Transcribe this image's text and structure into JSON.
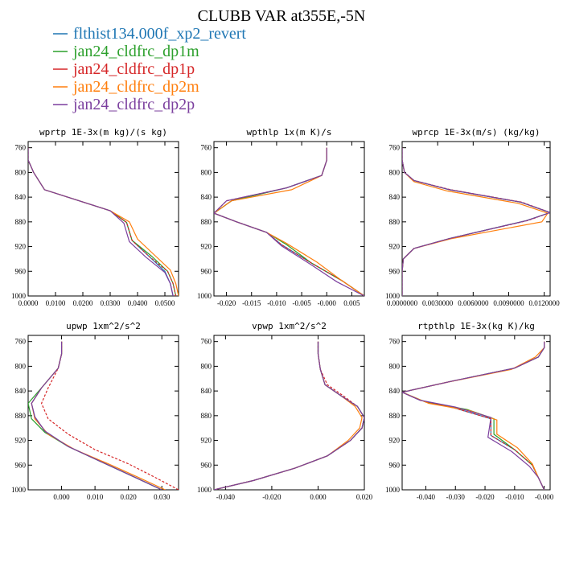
{
  "figure": {
    "title": "CLUBB VAR at355E,-5N"
  },
  "legend": [
    {
      "label": "flthist134.000f_xp2_revert",
      "color": "#1f77b4"
    },
    {
      "label": "jan24_cldfrc_dp1m",
      "color": "#2ca02c"
    },
    {
      "label": "jan24_cldfrc_dp1p",
      "color": "#d62728"
    },
    {
      "label": "jan24_cldfrc_dp2m",
      "color": "#ff7f0e"
    },
    {
      "label": "jan24_cldfrc_dp2p",
      "color": "#7b3f9e"
    }
  ],
  "chart_data": [
    {
      "type": "line",
      "title": "wprtp  1E-3x(m kg)/(s kg)",
      "xlim": [
        0.0,
        0.055
      ],
      "ylim": [
        1000,
        750
      ],
      "y_reversed": true,
      "xticks": [
        0.0,
        0.01,
        0.02,
        0.03,
        0.04,
        0.05
      ],
      "xtick_labels": [
        "0.0000",
        "0.0100",
        "0.0200",
        "0.0300",
        "0.0400",
        "0.0500"
      ],
      "yticks": [
        760,
        800,
        840,
        880,
        920,
        960,
        1000
      ],
      "series": [
        {
          "x": [
            0.0,
            0.0,
            0.002,
            0.006,
            0.03,
            0.036,
            0.038,
            0.044,
            0.05,
            0.052,
            0.053
          ],
          "y": [
            760,
            780,
            800,
            828,
            862,
            881,
            910,
            935,
            960,
            980,
            1000
          ]
        },
        {
          "x": [
            0.0,
            0.0,
            0.002,
            0.006,
            0.03,
            0.036,
            0.038,
            0.045,
            0.051,
            0.053,
            0.054
          ],
          "y": [
            760,
            780,
            800,
            828,
            862,
            881,
            910,
            935,
            960,
            980,
            1000
          ]
        },
        {
          "x": [
            0.0,
            0.0,
            0.002,
            0.006,
            0.03,
            0.036,
            0.038,
            0.044,
            0.051,
            0.053,
            0.054
          ],
          "y": [
            760,
            780,
            800,
            828,
            862,
            881,
            910,
            935,
            960,
            980,
            1000
          ]
        },
        {
          "x": [
            0.0,
            0.0,
            0.002,
            0.006,
            0.03,
            0.037,
            0.04,
            0.046,
            0.052,
            0.054,
            0.055
          ],
          "y": [
            760,
            780,
            800,
            828,
            862,
            880,
            908,
            933,
            958,
            980,
            1000
          ]
        },
        {
          "x": [
            0.0,
            0.0,
            0.002,
            0.006,
            0.03,
            0.035,
            0.037,
            0.043,
            0.05,
            0.052,
            0.053
          ],
          "y": [
            760,
            780,
            800,
            828,
            862,
            882,
            912,
            937,
            962,
            980,
            1000
          ]
        }
      ]
    },
    {
      "type": "line",
      "title": "wpthlp  1x(m K)/s",
      "xlim": [
        -0.0225,
        0.0075
      ],
      "ylim": [
        1000,
        750
      ],
      "y_reversed": true,
      "xticks": [
        -0.02,
        -0.015,
        -0.01,
        -0.005,
        0.0,
        0.005
      ],
      "xtick_labels": [
        "-0.020",
        "-0.015",
        "-0.010",
        "-0.005",
        "-0.000",
        "0.005"
      ],
      "yticks": [
        760,
        800,
        840,
        880,
        920,
        960,
        1000
      ],
      "series": [
        {
          "x": [
            0.0,
            0.0,
            -0.001,
            -0.008,
            -0.019,
            -0.0225,
            -0.018,
            -0.012,
            -0.009,
            -0.003,
            0.003,
            0.0075
          ],
          "y": [
            760,
            780,
            805,
            825,
            846,
            866,
            880,
            897,
            917,
            947,
            975,
            1000
          ]
        },
        {
          "x": [
            0.0,
            0.0,
            -0.001,
            -0.008,
            -0.019,
            -0.0225,
            -0.018,
            -0.012,
            -0.008,
            -0.003,
            0.003,
            0.0075
          ],
          "y": [
            760,
            780,
            805,
            825,
            846,
            866,
            880,
            897,
            917,
            947,
            975,
            1000
          ]
        },
        {
          "x": [
            0.0,
            0.0,
            -0.001,
            -0.008,
            -0.02,
            -0.0225,
            -0.018,
            -0.012,
            -0.009,
            -0.003,
            0.003,
            0.0075
          ],
          "y": [
            760,
            780,
            805,
            825,
            846,
            866,
            880,
            897,
            917,
            947,
            975,
            1000
          ]
        },
        {
          "x": [
            0.0,
            0.0,
            -0.001,
            -0.007,
            -0.019,
            -0.0225,
            -0.018,
            -0.012,
            -0.008,
            -0.002,
            0.003,
            0.0075
          ],
          "y": [
            760,
            780,
            805,
            828,
            846,
            866,
            880,
            897,
            915,
            945,
            975,
            1000
          ]
        },
        {
          "x": [
            0.0,
            0.0,
            -0.001,
            -0.008,
            -0.02,
            -0.0225,
            -0.018,
            -0.012,
            -0.009,
            -0.003,
            0.002,
            0.0075
          ],
          "y": [
            760,
            780,
            805,
            825,
            846,
            866,
            880,
            897,
            919,
            950,
            977,
            1000
          ]
        }
      ]
    },
    {
      "type": "line",
      "title": "wprcp  1E-3x(m/s) (kg/kg)",
      "xlim": [
        0.0,
        0.0125
      ],
      "ylim": [
        1000,
        750
      ],
      "y_reversed": true,
      "xticks": [
        0.0,
        0.003,
        0.006,
        0.009,
        0.012
      ],
      "xtick_labels": [
        "0.0000000",
        "0.0030000",
        "0.0060000",
        "0.0090000",
        "0.0120000"
      ],
      "yticks": [
        760,
        800,
        840,
        880,
        920,
        960,
        1000
      ],
      "series": [
        {
          "x": [
            0.0,
            0.0,
            0.0002,
            0.001,
            0.004,
            0.01,
            0.0125,
            0.0105,
            0.004,
            0.001,
            0.0001,
            0.0,
            0.0
          ],
          "y": [
            760,
            780,
            800,
            813,
            828,
            848,
            865,
            878,
            907,
            923,
            940,
            960,
            1000
          ]
        },
        {
          "x": [
            0.0,
            0.0,
            0.0002,
            0.001,
            0.004,
            0.01,
            0.0125,
            0.0105,
            0.004,
            0.001,
            0.0001,
            0.0,
            0.0
          ],
          "y": [
            760,
            780,
            800,
            813,
            828,
            848,
            865,
            878,
            907,
            923,
            940,
            960,
            1000
          ]
        },
        {
          "x": [
            0.0,
            0.0,
            0.0002,
            0.001,
            0.0041,
            0.0101,
            0.0125,
            0.0106,
            0.004,
            0.001,
            0.0001,
            0.0,
            0.0
          ],
          "y": [
            760,
            780,
            800,
            813,
            828,
            848,
            865,
            878,
            907,
            923,
            940,
            960,
            1000
          ]
        },
        {
          "x": [
            0.0,
            0.0,
            0.0002,
            0.001,
            0.0038,
            0.0098,
            0.0123,
            0.0118,
            0.0042,
            0.001,
            0.0001,
            0.0,
            0.0
          ],
          "y": [
            760,
            780,
            800,
            815,
            830,
            850,
            866,
            880,
            907,
            923,
            940,
            960,
            1000
          ]
        },
        {
          "x": [
            0.0,
            0.0,
            0.0002,
            0.001,
            0.004,
            0.01,
            0.0125,
            0.0105,
            0.004,
            0.001,
            0.0001,
            0.0,
            0.0
          ],
          "y": [
            760,
            780,
            800,
            813,
            828,
            848,
            865,
            878,
            907,
            923,
            940,
            960,
            1000
          ]
        }
      ]
    },
    {
      "type": "line",
      "title": "upwp  1xm^2/s^2",
      "xlim": [
        -0.01,
        0.035
      ],
      "ylim": [
        1000,
        750
      ],
      "y_reversed": true,
      "xticks": [
        0.0,
        0.01,
        0.02,
        0.03
      ],
      "xtick_labels": [
        "0.000",
        "0.010",
        "0.020",
        "0.030"
      ],
      "yticks": [
        760,
        800,
        840,
        880,
        920,
        960,
        1000
      ],
      "series": [
        {
          "x": [
            0.0,
            0.0,
            -0.001,
            -0.006,
            -0.009,
            -0.008,
            -0.005,
            0.002,
            0.012,
            0.022,
            0.03
          ],
          "y": [
            760,
            780,
            803,
            835,
            860,
            882,
            905,
            930,
            955,
            980,
            1000
          ]
        },
        {
          "x": [
            0.0,
            0.0,
            -0.001,
            -0.006,
            -0.01,
            -0.009,
            -0.005,
            0.002,
            0.012,
            0.022,
            0.03
          ],
          "y": [
            760,
            780,
            803,
            835,
            860,
            885,
            907,
            930,
            955,
            980,
            1000
          ]
        },
        {
          "x": [
            0.0,
            0.0,
            -0.001,
            -0.004,
            -0.006,
            -0.004,
            0.002,
            0.01,
            0.02,
            0.028,
            0.035
          ],
          "y": [
            760,
            780,
            803,
            835,
            860,
            885,
            910,
            935,
            958,
            980,
            1000
          ]
        },
        {
          "x": [
            0.0,
            0.0,
            -0.001,
            -0.006,
            -0.009,
            -0.008,
            -0.004,
            0.004,
            0.014,
            0.023,
            0.031
          ],
          "y": [
            760,
            780,
            803,
            835,
            860,
            885,
            910,
            935,
            958,
            980,
            1000
          ]
        },
        {
          "x": [
            0.0,
            0.0,
            -0.001,
            -0.006,
            -0.009,
            -0.008,
            -0.005,
            0.002,
            0.012,
            0.022,
            0.03
          ],
          "y": [
            760,
            780,
            803,
            835,
            860,
            882,
            905,
            930,
            955,
            980,
            1000
          ]
        }
      ]
    },
    {
      "type": "line",
      "title": "vpwp  1xm^2/s^2",
      "xlim": [
        -0.045,
        0.02
      ],
      "ylim": [
        1000,
        750
      ],
      "y_reversed": true,
      "xticks": [
        -0.04,
        -0.02,
        0.0,
        0.02
      ],
      "xtick_labels": [
        "-0.040",
        "-0.020",
        "0.000",
        "0.020"
      ],
      "yticks": [
        760,
        800,
        840,
        880,
        920,
        960,
        1000
      ],
      "series": [
        {
          "x": [
            0.0,
            0.0,
            0.001,
            0.003,
            0.01,
            0.017,
            0.02,
            0.019,
            0.014,
            0.004,
            -0.01,
            -0.028,
            -0.045
          ],
          "y": [
            760,
            780,
            805,
            830,
            848,
            865,
            883,
            900,
            920,
            945,
            965,
            985,
            1000
          ]
        },
        {
          "x": [
            0.0,
            0.0,
            0.001,
            0.003,
            0.01,
            0.017,
            0.02,
            0.019,
            0.014,
            0.004,
            -0.01,
            -0.028,
            -0.045
          ],
          "y": [
            760,
            780,
            805,
            830,
            848,
            865,
            883,
            900,
            920,
            945,
            965,
            985,
            1000
          ]
        },
        {
          "x": [
            0.0,
            0.0,
            0.001,
            0.004,
            0.011,
            0.017,
            0.02,
            0.019,
            0.014,
            0.004,
            -0.01,
            -0.028,
            -0.045
          ],
          "y": [
            760,
            780,
            805,
            830,
            848,
            865,
            883,
            900,
            920,
            945,
            965,
            985,
            1000
          ]
        },
        {
          "x": [
            0.0,
            0.0,
            0.001,
            0.003,
            0.01,
            0.016,
            0.019,
            0.018,
            0.013,
            0.004,
            -0.01,
            -0.028,
            -0.045
          ],
          "y": [
            760,
            780,
            805,
            830,
            848,
            865,
            883,
            900,
            920,
            945,
            965,
            985,
            1000
          ]
        },
        {
          "x": [
            0.0,
            0.0,
            0.001,
            0.003,
            0.01,
            0.017,
            0.02,
            0.019,
            0.014,
            0.004,
            -0.01,
            -0.028,
            -0.045
          ],
          "y": [
            760,
            780,
            805,
            830,
            848,
            865,
            883,
            900,
            920,
            945,
            965,
            985,
            1000
          ]
        }
      ]
    },
    {
      "type": "line",
      "title": "rtpthlp  1E-3x(kg K)/kg",
      "xlim": [
        -0.048,
        0.002
      ],
      "ylim": [
        1000,
        750
      ],
      "y_reversed": true,
      "xticks": [
        -0.04,
        -0.03,
        -0.02,
        -0.01,
        0.0
      ],
      "xtick_labels": [
        "-0.040",
        "-0.030",
        "-0.020",
        "-0.010",
        "-0.000"
      ],
      "yticks": [
        760,
        800,
        840,
        880,
        920,
        960,
        1000
      ],
      "series": [
        {
          "x": [
            0.0,
            0.0,
            -0.002,
            -0.01,
            -0.032,
            -0.048,
            -0.042,
            -0.03,
            -0.018,
            -0.018,
            -0.01,
            -0.004,
            -0.002,
            0.0
          ],
          "y": [
            760,
            770,
            785,
            803,
            825,
            842,
            855,
            868,
            885,
            912,
            935,
            960,
            980,
            1000
          ]
        },
        {
          "x": [
            0.0,
            0.0,
            -0.002,
            -0.01,
            -0.032,
            -0.048,
            -0.04,
            -0.026,
            -0.017,
            -0.017,
            -0.01,
            -0.004,
            -0.002,
            0.0
          ],
          "y": [
            760,
            770,
            785,
            803,
            825,
            842,
            858,
            870,
            885,
            910,
            935,
            960,
            980,
            1000
          ]
        },
        {
          "x": [
            0.0,
            0.0,
            -0.002,
            -0.01,
            -0.032,
            -0.048,
            -0.042,
            -0.03,
            -0.018,
            -0.018,
            -0.01,
            -0.004,
            -0.002,
            0.0
          ],
          "y": [
            760,
            770,
            785,
            803,
            825,
            842,
            855,
            868,
            885,
            912,
            935,
            960,
            980,
            1000
          ]
        },
        {
          "x": [
            0.0,
            0.0,
            -0.003,
            -0.011,
            -0.033,
            -0.048,
            -0.039,
            -0.025,
            -0.016,
            -0.016,
            -0.009,
            -0.004,
            -0.002,
            0.0
          ],
          "y": [
            760,
            770,
            785,
            805,
            826,
            842,
            860,
            872,
            887,
            910,
            932,
            958,
            980,
            1000
          ]
        },
        {
          "x": [
            0.0,
            0.0,
            -0.002,
            -0.01,
            -0.032,
            -0.048,
            -0.042,
            -0.03,
            -0.018,
            -0.019,
            -0.011,
            -0.005,
            -0.002,
            0.0
          ],
          "y": [
            760,
            770,
            785,
            803,
            825,
            842,
            855,
            866,
            883,
            915,
            938,
            962,
            980,
            1000
          ]
        }
      ]
    }
  ]
}
